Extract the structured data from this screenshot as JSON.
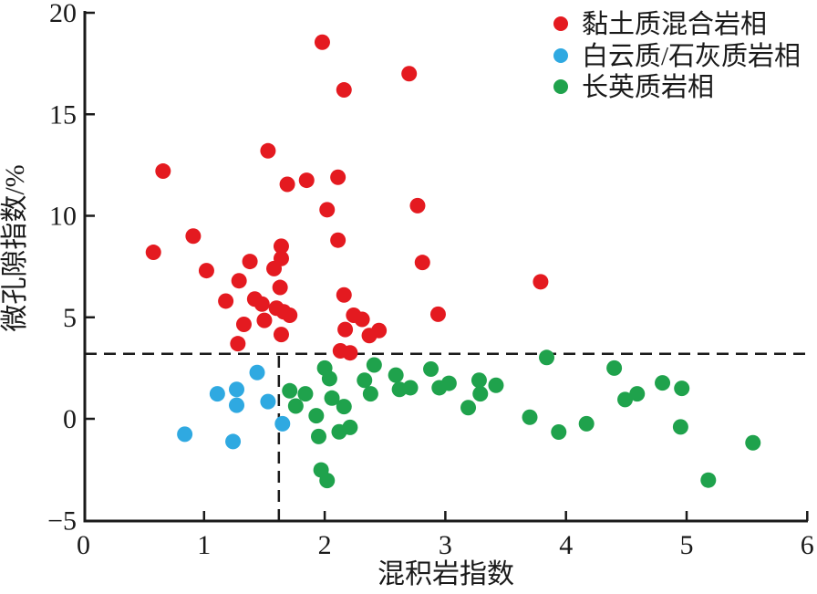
{
  "chart_data": {
    "type": "scatter",
    "title": "",
    "xlabel": "混积岩指数",
    "ylabel": "微孔隙指数/%",
    "xlim": [
      0,
      6
    ],
    "ylim": [
      -5,
      20
    ],
    "x_ticks": [
      0,
      1,
      2,
      3,
      4,
      5,
      6
    ],
    "y_ticks": [
      20,
      15,
      10,
      5,
      0,
      -5
    ],
    "grid": false,
    "legend_position": "top-right",
    "axis_color": "#1a1a1a",
    "reference_lines": {
      "horizontal_y": 3.2,
      "vertical_x": 1.62,
      "style": "dashed",
      "color": "#1a1a1a"
    },
    "series": [
      {
        "name": "黏土质混合岩相",
        "color": "#e41a20",
        "points": [
          [
            0.58,
            8.2
          ],
          [
            0.66,
            12.2
          ],
          [
            0.91,
            9.0
          ],
          [
            1.02,
            7.3
          ],
          [
            1.18,
            5.8
          ],
          [
            1.28,
            3.7
          ],
          [
            1.29,
            6.8
          ],
          [
            1.33,
            4.65
          ],
          [
            1.38,
            7.75
          ],
          [
            1.42,
            5.9
          ],
          [
            1.48,
            5.65
          ],
          [
            1.5,
            4.85
          ],
          [
            1.53,
            13.2
          ],
          [
            1.58,
            7.4
          ],
          [
            1.6,
            5.45
          ],
          [
            1.63,
            6.47
          ],
          [
            1.64,
            8.5
          ],
          [
            1.64,
            7.9
          ],
          [
            1.64,
            4.15
          ],
          [
            1.66,
            5.27
          ],
          [
            1.69,
            11.55
          ],
          [
            1.71,
            5.1
          ],
          [
            1.85,
            11.75
          ],
          [
            1.98,
            18.55
          ],
          [
            2.02,
            10.3
          ],
          [
            2.11,
            11.9
          ],
          [
            2.11,
            8.8
          ],
          [
            2.13,
            3.35
          ],
          [
            2.16,
            16.2
          ],
          [
            2.16,
            6.1
          ],
          [
            2.17,
            4.4
          ],
          [
            2.21,
            3.25
          ],
          [
            2.24,
            5.1
          ],
          [
            2.31,
            4.9
          ],
          [
            2.37,
            4.1
          ],
          [
            2.45,
            4.35
          ],
          [
            2.7,
            17.0
          ],
          [
            2.77,
            10.5
          ],
          [
            2.81,
            7.7
          ],
          [
            2.94,
            5.15
          ],
          [
            3.79,
            6.75
          ]
        ]
      },
      {
        "name": "白云质/石灰质岩相",
        "color": "#2fa9e1",
        "points": [
          [
            0.84,
            -0.76
          ],
          [
            1.11,
            1.23
          ],
          [
            1.24,
            -1.12
          ],
          [
            1.27,
            1.45
          ],
          [
            1.27,
            0.67
          ],
          [
            1.44,
            2.28
          ],
          [
            1.53,
            0.85
          ],
          [
            1.65,
            -0.24
          ]
        ]
      },
      {
        "name": "长英质岩相",
        "color": "#1fa24c",
        "points": [
          [
            1.71,
            1.38
          ],
          [
            1.76,
            0.63
          ],
          [
            1.84,
            1.23
          ],
          [
            1.93,
            0.15
          ],
          [
            1.95,
            -0.87
          ],
          [
            1.97,
            -2.52
          ],
          [
            2.0,
            2.5
          ],
          [
            2.02,
            -3.04
          ],
          [
            2.04,
            1.98
          ],
          [
            2.06,
            1.02
          ],
          [
            2.12,
            -0.64
          ],
          [
            2.16,
            0.6
          ],
          [
            2.21,
            -0.42
          ],
          [
            2.33,
            1.9
          ],
          [
            2.38,
            1.23
          ],
          [
            2.41,
            2.65
          ],
          [
            2.59,
            2.15
          ],
          [
            2.62,
            1.45
          ],
          [
            2.71,
            1.53
          ],
          [
            2.88,
            2.45
          ],
          [
            2.95,
            1.53
          ],
          [
            3.03,
            1.75
          ],
          [
            3.19,
            0.55
          ],
          [
            3.28,
            1.9
          ],
          [
            3.29,
            1.23
          ],
          [
            3.42,
            1.65
          ],
          [
            3.7,
            0.08
          ],
          [
            3.84,
            3.02
          ],
          [
            3.94,
            -0.65
          ],
          [
            4.17,
            -0.24
          ],
          [
            4.4,
            2.5
          ],
          [
            4.49,
            0.95
          ],
          [
            4.59,
            1.23
          ],
          [
            4.8,
            1.77
          ],
          [
            4.95,
            -0.4
          ],
          [
            4.96,
            1.5
          ],
          [
            5.18,
            -3.02
          ],
          [
            5.55,
            -1.18
          ]
        ]
      }
    ]
  }
}
